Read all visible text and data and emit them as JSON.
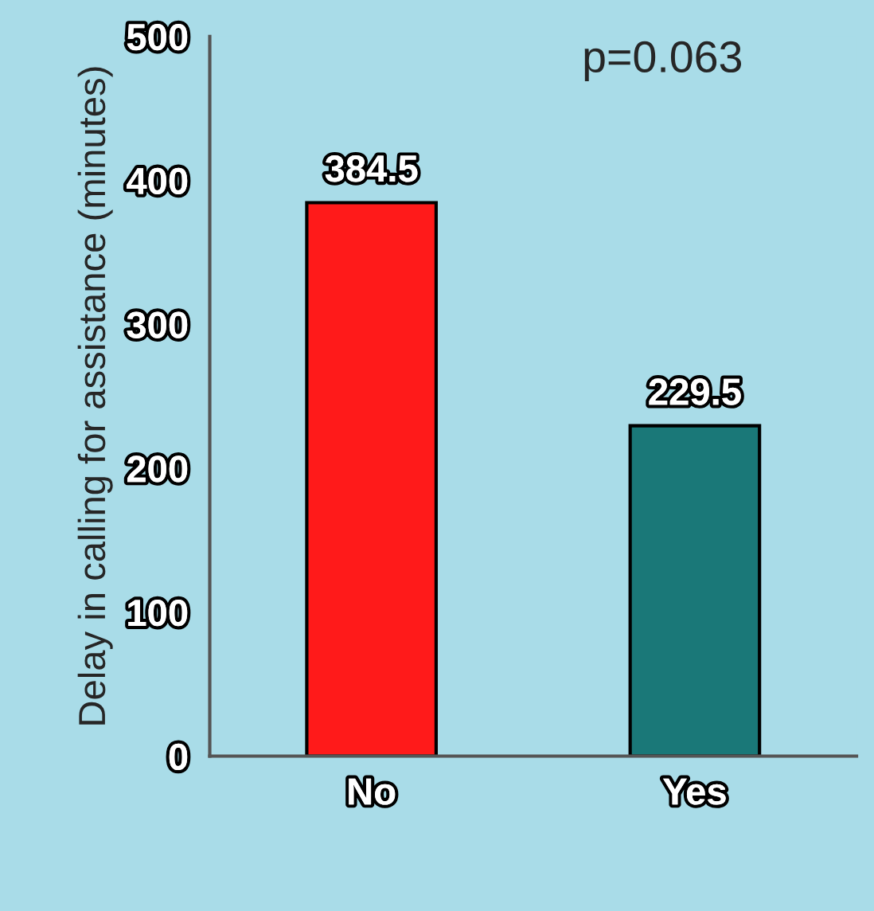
{
  "chart_data": {
    "type": "bar",
    "ylabel": "Delay in calling for assistance (minutes)",
    "categories": [
      "No",
      "Yes"
    ],
    "values": [
      384.5,
      229.5
    ],
    "colors": [
      "#ff1a1a",
      "#1a7878"
    ],
    "ylim": [
      0,
      500
    ],
    "yticks": [
      0,
      100,
      200,
      300,
      400,
      500
    ],
    "data_labels": true,
    "grid": false,
    "annotations": [
      "p=0.063"
    ]
  }
}
